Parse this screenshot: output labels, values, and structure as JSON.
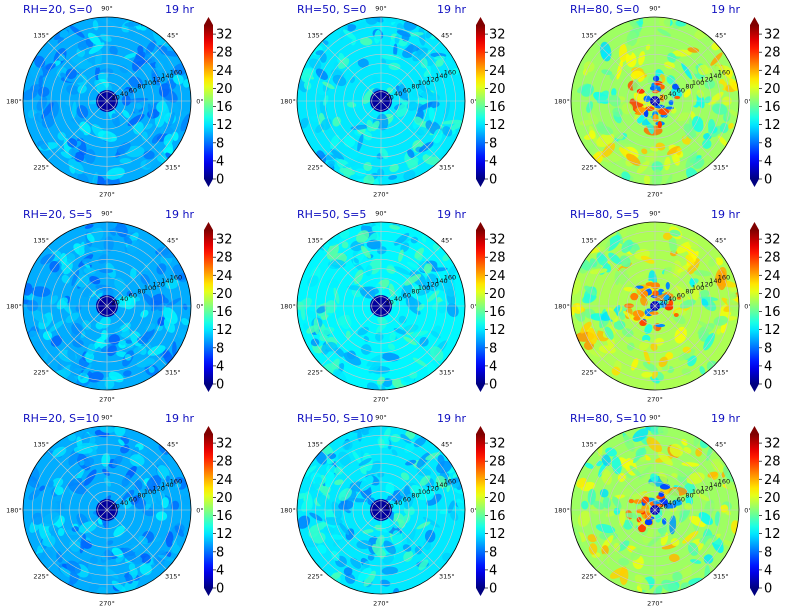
{
  "figure": {
    "colormap": "jet",
    "colorbar": {
      "ticks": [
        "0",
        "4",
        "8",
        "12",
        "16",
        "20",
        "24",
        "28",
        "32"
      ],
      "range": [
        0,
        34
      ]
    },
    "polar": {
      "angle_ticks": [
        "0°",
        "45°",
        "90°",
        "135°",
        "180°",
        "225°",
        "270°",
        "315°"
      ],
      "radial_ticks": [
        "20",
        "40",
        "60",
        "80",
        "100",
        "120",
        "140",
        "160"
      ],
      "rmax": 180
    }
  },
  "chart_data": [
    {
      "type": "heatmap",
      "projection": "polar",
      "title_left": "RH=20, S=0",
      "title_right": "19 hr",
      "mean_value": 10,
      "spread": 2,
      "pattern": "uniform",
      "cmap": "jet",
      "vmin": 0,
      "vmax": 34
    },
    {
      "type": "heatmap",
      "projection": "polar",
      "title_left": "RH=50, S=0",
      "title_right": "19 hr",
      "mean_value": 12,
      "spread": 2.5,
      "pattern": "uniform",
      "cmap": "jet",
      "vmin": 0,
      "vmax": 34
    },
    {
      "type": "heatmap",
      "projection": "polar",
      "title_left": "RH=80, S=0",
      "title_right": "19 hr",
      "mean_value": 18,
      "spread": 3,
      "pattern": "spiral",
      "cmap": "jet",
      "vmin": 0,
      "vmax": 34
    },
    {
      "type": "heatmap",
      "projection": "polar",
      "title_left": "RH=20, S=5",
      "title_right": "19 hr",
      "mean_value": 10,
      "spread": 2,
      "pattern": "uniform",
      "cmap": "jet",
      "vmin": 0,
      "vmax": 34
    },
    {
      "type": "heatmap",
      "projection": "polar",
      "title_left": "RH=50, S=5",
      "title_right": "19 hr",
      "mean_value": 12.5,
      "spread": 2.5,
      "pattern": "uniform",
      "cmap": "jet",
      "vmin": 0,
      "vmax": 34
    },
    {
      "type": "heatmap",
      "projection": "polar",
      "title_left": "RH=80, S=5",
      "title_right": "19 hr",
      "mean_value": 18.5,
      "spread": 3,
      "pattern": "spiral",
      "cmap": "jet",
      "vmin": 0,
      "vmax": 34
    },
    {
      "type": "heatmap",
      "projection": "polar",
      "title_left": "RH=20, S=10",
      "title_right": "19 hr",
      "mean_value": 10,
      "spread": 2,
      "pattern": "uniform",
      "cmap": "jet",
      "vmin": 0,
      "vmax": 34
    },
    {
      "type": "heatmap",
      "projection": "polar",
      "title_left": "RH=50, S=10",
      "title_right": "19 hr",
      "mean_value": 12,
      "spread": 2.5,
      "pattern": "uniform",
      "cmap": "jet",
      "vmin": 0,
      "vmax": 34
    },
    {
      "type": "heatmap",
      "projection": "polar",
      "title_left": "RH=80, S=10",
      "title_right": "19 hr",
      "mean_value": 18,
      "spread": 3,
      "pattern": "spiral",
      "cmap": "jet",
      "vmin": 0,
      "vmax": 34
    }
  ]
}
